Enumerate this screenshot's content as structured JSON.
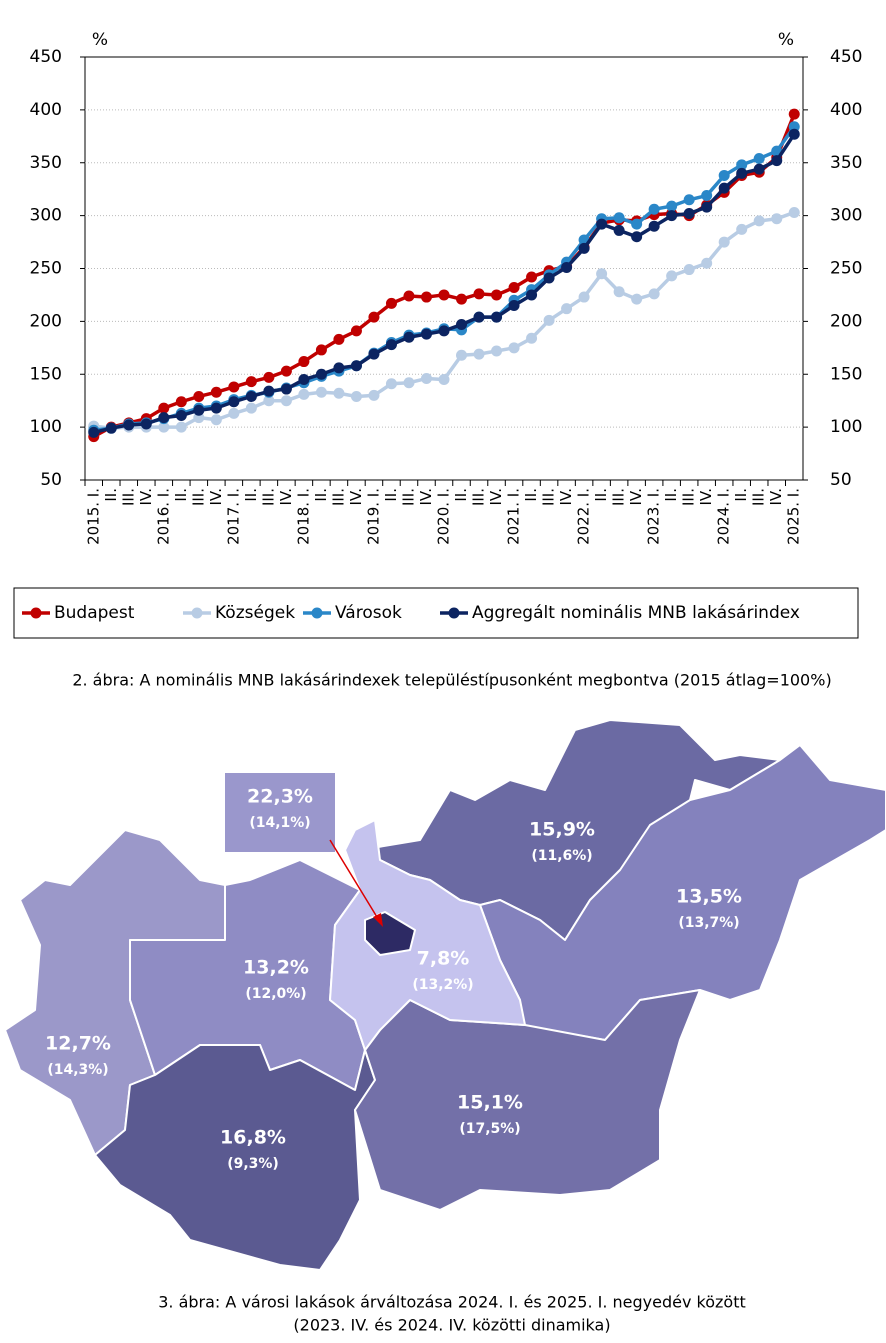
{
  "chart_data": {
    "type": "line",
    "y_label": "%",
    "y2_label": "%",
    "categories": [
      "2015. I.",
      "II.",
      "III.",
      "IV.",
      "2016. I.",
      "II.",
      "III.",
      "IV.",
      "2017. I.",
      "II.",
      "III.",
      "IV.",
      "2018. I.",
      "II.",
      "III.",
      "IV.",
      "2019. I.",
      "II.",
      "III.",
      "IV.",
      "2020. I.",
      "II.",
      "III.",
      "IV.",
      "2021. I.",
      "II.",
      "III.",
      "IV.",
      "2022. I.",
      "II.",
      "III.",
      "IV.",
      "2023. I.",
      "II.",
      "III.",
      "IV.",
      "2024. I.",
      "II.",
      "III.",
      "IV.",
      "2025. I."
    ],
    "series": [
      {
        "name": "Budapest",
        "color": "#c00000",
        "values": [
          91,
          100,
          104,
          108,
          118,
          124,
          129,
          133,
          138,
          143,
          147,
          153,
          162,
          173,
          183,
          191,
          204,
          217,
          224,
          223,
          225,
          221,
          226,
          225,
          232,
          242,
          248,
          252,
          270,
          293,
          296,
          295,
          301,
          302,
          300,
          310,
          322,
          338,
          341,
          355,
          396
        ]
      },
      {
        "name": "Községek",
        "color": "#b8cce4",
        "values": [
          101,
          99,
          100,
          100,
          100,
          100,
          109,
          107,
          113,
          118,
          125,
          125,
          131,
          133,
          132,
          129,
          130,
          141,
          142,
          146,
          145,
          168,
          169,
          172,
          175,
          184,
          201,
          212,
          223,
          245,
          228,
          221,
          226,
          243,
          249,
          255,
          275,
          287,
          295,
          297,
          303
        ]
      },
      {
        "name": "Városok",
        "color": "#2a87c8",
        "values": [
          97,
          99,
          103,
          104,
          108,
          113,
          118,
          120,
          126,
          130,
          133,
          137,
          142,
          148,
          153,
          158,
          170,
          180,
          187,
          189,
          193,
          192,
          204,
          204,
          220,
          230,
          244,
          256,
          277,
          297,
          298,
          292,
          306,
          309,
          315,
          319,
          338,
          348,
          354,
          361,
          384
        ]
      },
      {
        "name": "Aggregált nominális MNB lakásárindex",
        "color": "#0c2461",
        "values": [
          95,
          99,
          102,
          103,
          109,
          111,
          116,
          118,
          124,
          129,
          134,
          136,
          145,
          150,
          156,
          158,
          169,
          178,
          185,
          188,
          191,
          197,
          204,
          204,
          215,
          225,
          241,
          251,
          269,
          292,
          286,
          280,
          290,
          300,
          302,
          308,
          326,
          340,
          344,
          352,
          377
        ]
      }
    ],
    "ylim": [
      50,
      450
    ],
    "yticks": [
      50,
      100,
      150,
      200,
      250,
      300,
      350,
      400,
      450
    ],
    "y2lim": [
      50,
      450
    ],
    "y2ticks": [
      50,
      100,
      150,
      200,
      250,
      300,
      350,
      400,
      450
    ],
    "grid": true,
    "legend": "bottom"
  },
  "caption_1": "2. ábra: A nominális MNB lakásárindexek településtípusonként megbontva (2015 átlag=100%)",
  "map": {
    "regions": [
      {
        "value_label": "22,3%",
        "sub_label": "(14,1%)"
      },
      {
        "value_label": "15,9%",
        "sub_label": "(11,6%)"
      },
      {
        "value_label": "13,5%",
        "sub_label": "(13,7%)"
      },
      {
        "value_label": "13,2%",
        "sub_label": "(12,0%)"
      },
      {
        "value_label": "7,8%",
        "sub_label": "(13,2%)"
      },
      {
        "value_label": "12,7%",
        "sub_label": "(14,3%)"
      },
      {
        "value_label": "15,1%",
        "sub_label": "(17,5%)"
      },
      {
        "value_label": "16,8%",
        "sub_label": "(9,3%)"
      }
    ]
  },
  "caption_2": [
    "3. ábra: A városi lakások árváltozása 2024. I. és 2025. I. negyedév között",
    "(2023. IV. és 2024. IV. közötti dinamika)"
  ]
}
